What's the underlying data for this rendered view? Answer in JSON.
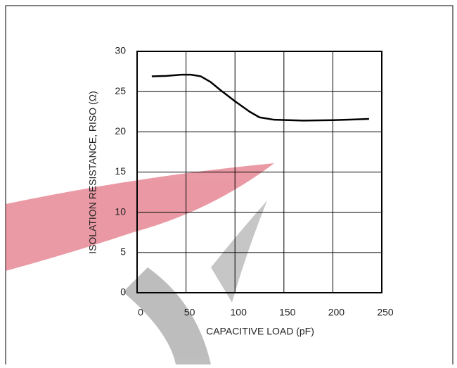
{
  "chart_data": {
    "type": "line",
    "xlabel": "CAPACITIVE LOAD (pF)",
    "ylabel": "ISOLATION RESISTANCE, RISO (Ω)",
    "x": [
      15,
      30,
      45,
      55,
      65,
      75,
      85,
      100,
      115,
      125,
      140,
      170,
      200,
      237
    ],
    "series": [
      {
        "color": "#000000",
        "values": [
          26.9,
          26.95,
          27.1,
          27.1,
          26.9,
          26.2,
          25.2,
          23.8,
          22.5,
          21.8,
          21.5,
          21.4,
          21.45,
          21.6
        ]
      }
    ],
    "xlim": [
      0,
      250
    ],
    "xticks": [
      0,
      50,
      100,
      150,
      200,
      250
    ],
    "ylim": [
      0,
      30
    ],
    "yticks": [
      0,
      5,
      10,
      15,
      20,
      25,
      30
    ],
    "grid": true
  }
}
